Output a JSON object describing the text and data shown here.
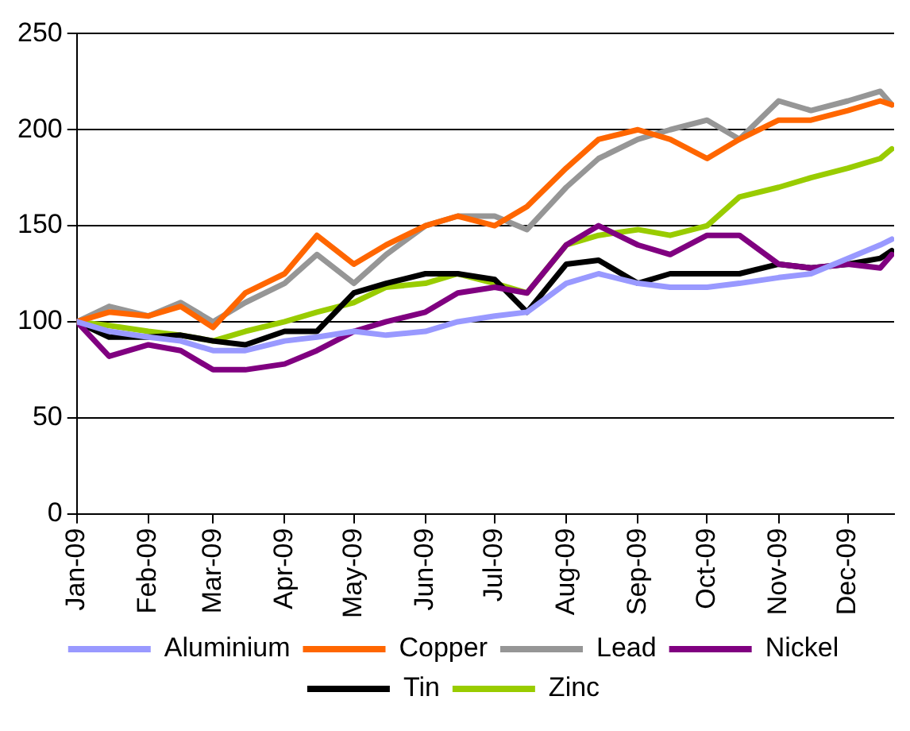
{
  "chart_data": {
    "type": "line",
    "x": [
      "2009-01-01",
      "2009-01-15",
      "2009-02-01",
      "2009-02-15",
      "2009-03-01",
      "2009-03-15",
      "2009-04-01",
      "2009-04-15",
      "2009-05-01",
      "2009-05-15",
      "2009-06-01",
      "2009-06-15",
      "2009-07-01",
      "2009-07-15",
      "2009-08-01",
      "2009-08-15",
      "2009-09-01",
      "2009-09-15",
      "2009-10-01",
      "2009-10-15",
      "2009-11-01",
      "2009-11-15",
      "2009-12-01",
      "2009-12-15",
      "2009-12-20"
    ],
    "series": [
      {
        "name": "Aluminium",
        "color": "#9999ff",
        "values": [
          100,
          95,
          92,
          90,
          85,
          85,
          90,
          92,
          95,
          93,
          95,
          100,
          103,
          105,
          120,
          125,
          120,
          118,
          118,
          120,
          123,
          125,
          133,
          140,
          143
        ]
      },
      {
        "name": "Copper",
        "color": "#ff6600",
        "values": [
          100,
          105,
          103,
          108,
          97,
          115,
          125,
          145,
          130,
          140,
          150,
          155,
          150,
          160,
          180,
          195,
          200,
          195,
          185,
          195,
          205,
          205,
          210,
          215,
          213
        ]
      },
      {
        "name": "Lead",
        "color": "#969696",
        "values": [
          100,
          108,
          103,
          110,
          100,
          110,
          120,
          135,
          120,
          135,
          150,
          155,
          155,
          148,
          170,
          185,
          195,
          200,
          205,
          195,
          215,
          210,
          215,
          220,
          213
        ]
      },
      {
        "name": "Nickel",
        "color": "#800080",
        "values": [
          100,
          82,
          88,
          85,
          75,
          75,
          78,
          85,
          95,
          100,
          105,
          115,
          118,
          115,
          140,
          150,
          140,
          135,
          145,
          145,
          130,
          128,
          130,
          128,
          135
        ]
      },
      {
        "name": "Tin",
        "color": "#000000",
        "values": [
          100,
          92,
          92,
          93,
          90,
          88,
          95,
          95,
          115,
          120,
          125,
          125,
          122,
          105,
          130,
          132,
          120,
          125,
          125,
          125,
          130,
          128,
          130,
          133,
          137
        ]
      },
      {
        "name": "Zinc",
        "color": "#99cc00",
        "values": [
          100,
          98,
          95,
          93,
          90,
          95,
          100,
          105,
          110,
          118,
          120,
          125,
          120,
          115,
          140,
          145,
          148,
          145,
          150,
          165,
          170,
          175,
          180,
          185,
          190
        ]
      }
    ],
    "xlim": [
      "2009-01-01",
      "2009-12-21"
    ],
    "xticks": [
      {
        "value": "2009-01-01",
        "label": "Jan-09"
      },
      {
        "value": "2009-02-01",
        "label": "Feb-09"
      },
      {
        "value": "2009-03-01",
        "label": "Mar-09"
      },
      {
        "value": "2009-04-01",
        "label": "Apr-09"
      },
      {
        "value": "2009-05-01",
        "label": "May-09"
      },
      {
        "value": "2009-06-01",
        "label": "Jun-09"
      },
      {
        "value": "2009-07-01",
        "label": "Jul-09"
      },
      {
        "value": "2009-08-01",
        "label": "Aug-09"
      },
      {
        "value": "2009-09-01",
        "label": "Sep-09"
      },
      {
        "value": "2009-10-01",
        "label": "Oct-09"
      },
      {
        "value": "2009-11-01",
        "label": "Nov-09"
      },
      {
        "value": "2009-12-01",
        "label": "Dec-09"
      }
    ],
    "ylim": [
      0,
      250
    ],
    "yticks": [
      0,
      50,
      100,
      150,
      200,
      250
    ],
    "grid": "y",
    "legend": "bottom",
    "marker": "none",
    "line_style": "solid"
  }
}
